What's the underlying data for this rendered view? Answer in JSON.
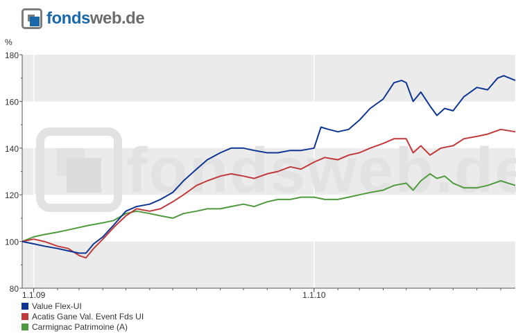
{
  "brand": {
    "part1": "fonds",
    "part2": "web.de"
  },
  "watermark": "fondsweb.de",
  "chart_data": {
    "type": "line",
    "ylabel": "%",
    "ylim": [
      80,
      180
    ],
    "yticks": [
      80,
      100,
      120,
      140,
      160,
      180
    ],
    "x_range": [
      "2008-12-17",
      "2010-09-20"
    ],
    "xticks": [
      {
        "date": "2009-01-01",
        "label": "1.1.09"
      },
      {
        "date": "2010-01-01",
        "label": "1.1.10"
      }
    ],
    "legend_position": "bottom-left",
    "series": [
      {
        "name": "Value Flex-UI",
        "color": "#0d3591",
        "points": [
          [
            "2008-12-17",
            100
          ],
          [
            "2009-01-01",
            99
          ],
          [
            "2009-01-15",
            98
          ],
          [
            "2009-02-01",
            97
          ],
          [
            "2009-02-15",
            96
          ],
          [
            "2009-03-01",
            95
          ],
          [
            "2009-03-10",
            95
          ],
          [
            "2009-03-20",
            99
          ],
          [
            "2009-04-01",
            102
          ],
          [
            "2009-04-15",
            107
          ],
          [
            "2009-05-01",
            113
          ],
          [
            "2009-05-15",
            115
          ],
          [
            "2009-06-01",
            116
          ],
          [
            "2009-06-15",
            118
          ],
          [
            "2009-07-01",
            121
          ],
          [
            "2009-07-15",
            126
          ],
          [
            "2009-08-01",
            131
          ],
          [
            "2009-08-15",
            135
          ],
          [
            "2009-09-01",
            138
          ],
          [
            "2009-09-15",
            140
          ],
          [
            "2009-10-01",
            140
          ],
          [
            "2009-10-15",
            139
          ],
          [
            "2009-11-01",
            138
          ],
          [
            "2009-11-15",
            138
          ],
          [
            "2009-12-01",
            139
          ],
          [
            "2009-12-15",
            139
          ],
          [
            "2010-01-01",
            140
          ],
          [
            "2010-01-10",
            149
          ],
          [
            "2010-01-20",
            148
          ],
          [
            "2010-02-01",
            147
          ],
          [
            "2010-02-15",
            148
          ],
          [
            "2010-03-01",
            152
          ],
          [
            "2010-03-15",
            157
          ],
          [
            "2010-04-01",
            161
          ],
          [
            "2010-04-15",
            168
          ],
          [
            "2010-04-25",
            169
          ],
          [
            "2010-05-01",
            168
          ],
          [
            "2010-05-10",
            160
          ],
          [
            "2010-05-20",
            164
          ],
          [
            "2010-06-01",
            158
          ],
          [
            "2010-06-10",
            154
          ],
          [
            "2010-06-20",
            157
          ],
          [
            "2010-07-01",
            156
          ],
          [
            "2010-07-15",
            162
          ],
          [
            "2010-08-01",
            166
          ],
          [
            "2010-08-15",
            165
          ],
          [
            "2010-08-28",
            170
          ],
          [
            "2010-09-05",
            171
          ],
          [
            "2010-09-20",
            169
          ]
        ]
      },
      {
        "name": "Acatis Gane Val. Event Fds UI",
        "color": "#c0393b",
        "points": [
          [
            "2008-12-17",
            100
          ],
          [
            "2009-01-01",
            101
          ],
          [
            "2009-01-15",
            100
          ],
          [
            "2009-02-01",
            98
          ],
          [
            "2009-02-15",
            97
          ],
          [
            "2009-03-01",
            94
          ],
          [
            "2009-03-10",
            93
          ],
          [
            "2009-03-20",
            97
          ],
          [
            "2009-04-01",
            101
          ],
          [
            "2009-04-15",
            106
          ],
          [
            "2009-05-01",
            111
          ],
          [
            "2009-05-15",
            114
          ],
          [
            "2009-06-01",
            113
          ],
          [
            "2009-06-15",
            114
          ],
          [
            "2009-07-01",
            117
          ],
          [
            "2009-07-15",
            120
          ],
          [
            "2009-08-01",
            124
          ],
          [
            "2009-08-15",
            126
          ],
          [
            "2009-09-01",
            128
          ],
          [
            "2009-09-15",
            129
          ],
          [
            "2009-10-01",
            128
          ],
          [
            "2009-10-15",
            127
          ],
          [
            "2009-11-01",
            129
          ],
          [
            "2009-11-15",
            130
          ],
          [
            "2009-12-01",
            132
          ],
          [
            "2009-12-15",
            131
          ],
          [
            "2010-01-01",
            134
          ],
          [
            "2010-01-15",
            136
          ],
          [
            "2010-02-01",
            135
          ],
          [
            "2010-02-15",
            137
          ],
          [
            "2010-03-01",
            138
          ],
          [
            "2010-03-15",
            140
          ],
          [
            "2010-04-01",
            142
          ],
          [
            "2010-04-15",
            144
          ],
          [
            "2010-05-01",
            144
          ],
          [
            "2010-05-10",
            138
          ],
          [
            "2010-05-20",
            141
          ],
          [
            "2010-06-01",
            137
          ],
          [
            "2010-06-15",
            140
          ],
          [
            "2010-07-01",
            141
          ],
          [
            "2010-07-15",
            144
          ],
          [
            "2010-08-01",
            145
          ],
          [
            "2010-08-15",
            146
          ],
          [
            "2010-09-01",
            148
          ],
          [
            "2010-09-20",
            147
          ]
        ]
      },
      {
        "name": "Carmignac Patrimoine (A)",
        "color": "#4f9a3e",
        "points": [
          [
            "2008-12-17",
            100
          ],
          [
            "2009-01-01",
            102
          ],
          [
            "2009-01-15",
            103
          ],
          [
            "2009-02-01",
            104
          ],
          [
            "2009-02-15",
            105
          ],
          [
            "2009-03-01",
            106
          ],
          [
            "2009-03-15",
            107
          ],
          [
            "2009-04-01",
            108
          ],
          [
            "2009-04-15",
            109
          ],
          [
            "2009-05-01",
            112
          ],
          [
            "2009-05-15",
            113
          ],
          [
            "2009-06-01",
            112
          ],
          [
            "2009-06-15",
            111
          ],
          [
            "2009-07-01",
            110
          ],
          [
            "2009-07-15",
            112
          ],
          [
            "2009-08-01",
            113
          ],
          [
            "2009-08-15",
            114
          ],
          [
            "2009-09-01",
            114
          ],
          [
            "2009-09-15",
            115
          ],
          [
            "2009-10-01",
            116
          ],
          [
            "2009-10-15",
            115
          ],
          [
            "2009-11-01",
            117
          ],
          [
            "2009-11-15",
            118
          ],
          [
            "2009-12-01",
            118
          ],
          [
            "2009-12-15",
            119
          ],
          [
            "2010-01-01",
            119
          ],
          [
            "2010-01-15",
            118
          ],
          [
            "2010-02-01",
            118
          ],
          [
            "2010-02-15",
            119
          ],
          [
            "2010-03-01",
            120
          ],
          [
            "2010-03-15",
            121
          ],
          [
            "2010-04-01",
            122
          ],
          [
            "2010-04-15",
            124
          ],
          [
            "2010-05-01",
            125
          ],
          [
            "2010-05-10",
            122
          ],
          [
            "2010-05-20",
            126
          ],
          [
            "2010-06-01",
            129
          ],
          [
            "2010-06-10",
            127
          ],
          [
            "2010-06-20",
            128
          ],
          [
            "2010-07-01",
            125
          ],
          [
            "2010-07-15",
            123
          ],
          [
            "2010-08-01",
            123
          ],
          [
            "2010-08-15",
            124
          ],
          [
            "2010-09-01",
            126
          ],
          [
            "2010-09-20",
            124
          ]
        ]
      }
    ]
  }
}
